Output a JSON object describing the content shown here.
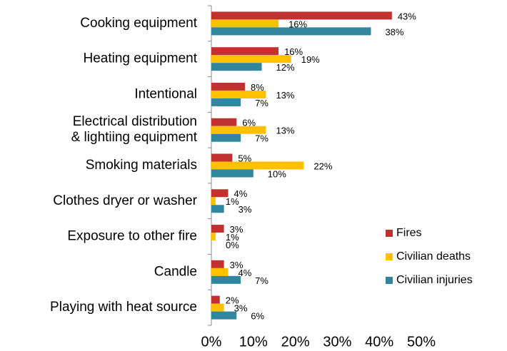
{
  "chart_data": {
    "type": "barh",
    "categories": [
      "Cooking equipment",
      "Heating equipment",
      "Intentional",
      "Electrical distribution\n& lightiing equipment",
      "Smoking materials",
      "Clothes dryer or washer",
      "Exposure to other fire",
      "Candle",
      "Playing with heat source"
    ],
    "series": [
      {
        "name": "Fires",
        "color": "#c0312f",
        "values": [
          43,
          16,
          8,
          6,
          5,
          4,
          3,
          3,
          2
        ],
        "value_labels": [
          "43%",
          "16%",
          "8%",
          "6%",
          "5%",
          "4%",
          "3%",
          "3%",
          "2%"
        ]
      },
      {
        "name": "Civilian deaths",
        "color": "#ffc000",
        "values": [
          16,
          19,
          13,
          13,
          22,
          1,
          1,
          4,
          3
        ],
        "value_labels": [
          "16%",
          "19%",
          "13%",
          "13%",
          "22%",
          "1%",
          "1%",
          "4%",
          "3%"
        ]
      },
      {
        "name": "Civilian injuries",
        "color": "#31859c",
        "values": [
          38,
          12,
          7,
          7,
          10,
          3,
          0,
          7,
          6
        ],
        "value_labels": [
          "38%",
          "12%",
          "7%",
          "7%",
          "10%",
          "3%",
          "0%",
          "7%",
          "6%"
        ]
      }
    ],
    "xlim": [
      0,
      50
    ],
    "xticks": [
      {
        "value": 0,
        "label": "0%"
      },
      {
        "value": 10,
        "label": "10%"
      },
      {
        "value": 20,
        "label": "20%"
      },
      {
        "value": 30,
        "label": "30%"
      },
      {
        "value": 40,
        "label": "40%"
      },
      {
        "value": 50,
        "label": "50%"
      }
    ],
    "legend": "lower right"
  }
}
